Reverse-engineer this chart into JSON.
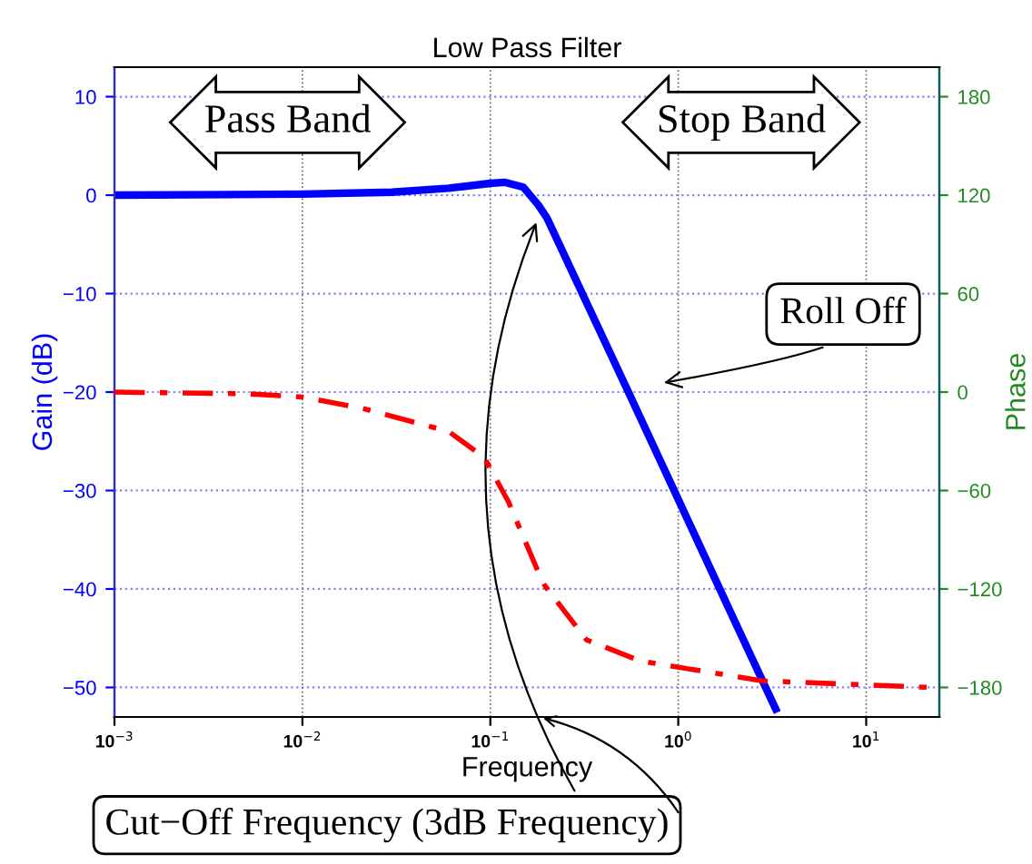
{
  "chart_data": {
    "type": "line",
    "title": "Low Pass Filter",
    "xlabel": "Frequency",
    "ylabel": "Gain (dB)",
    "y2label": "Phase",
    "log": "x",
    "grid": true,
    "marker": "none",
    "xlim": [
      0.001,
      24.5
    ],
    "xticks": [
      {
        "value": 0.001,
        "label": "10$^{−3}$"
      },
      {
        "value": 0.01,
        "label": "10$^{−2}$"
      },
      {
        "value": 0.1,
        "label": "10$^{−1}$"
      },
      {
        "value": 1,
        "label": "10$^{0}$"
      },
      {
        "value": 10,
        "label": "10$^{1}$"
      }
    ],
    "ylim": [
      -53,
      13
    ],
    "yticks": [
      -50,
      -40,
      -30,
      -20,
      -10,
      0,
      10
    ],
    "y2lim": [
      -198,
      198
    ],
    "y2ticks": [
      -180,
      -120,
      -60,
      0,
      60,
      120,
      180
    ],
    "series": [
      {
        "color": "#0000ff",
        "line_style": "solid",
        "x": [
          0.001,
          0.01,
          0.03,
          0.06,
          0.1,
          0.12,
          0.15,
          0.18,
          0.2,
          0.3,
          0.555,
          1.0,
          2.0,
          3.3
        ],
        "values": [
          0,
          0.1,
          0.3,
          0.7,
          1.2,
          1.3,
          0.8,
          -1,
          -2.3,
          -9.5,
          -20.4,
          -30.9,
          -43.3,
          -52.2
        ]
      },
      {
        "color": "#ff0000",
        "line_style": "dashed",
        "axis": "y2",
        "x": [
          0.001,
          0.005,
          0.01,
          0.021,
          0.06,
          0.093,
          0.125,
          0.182,
          0.195,
          0.325,
          0.634,
          2.81,
          22.3
        ],
        "values": [
          0,
          -1,
          -3,
          -10,
          -24,
          -40,
          -67,
          -111,
          -118,
          -151,
          -164,
          -176,
          -180
        ]
      }
    ],
    "annotations": [
      "Pass Band",
      "Stop Band",
      "Roll Off",
      {
        "text": "Cut−Off Frequency (3dB Frequency)",
        "x": 0.18,
        "y": -2.3
      }
    ]
  }
}
